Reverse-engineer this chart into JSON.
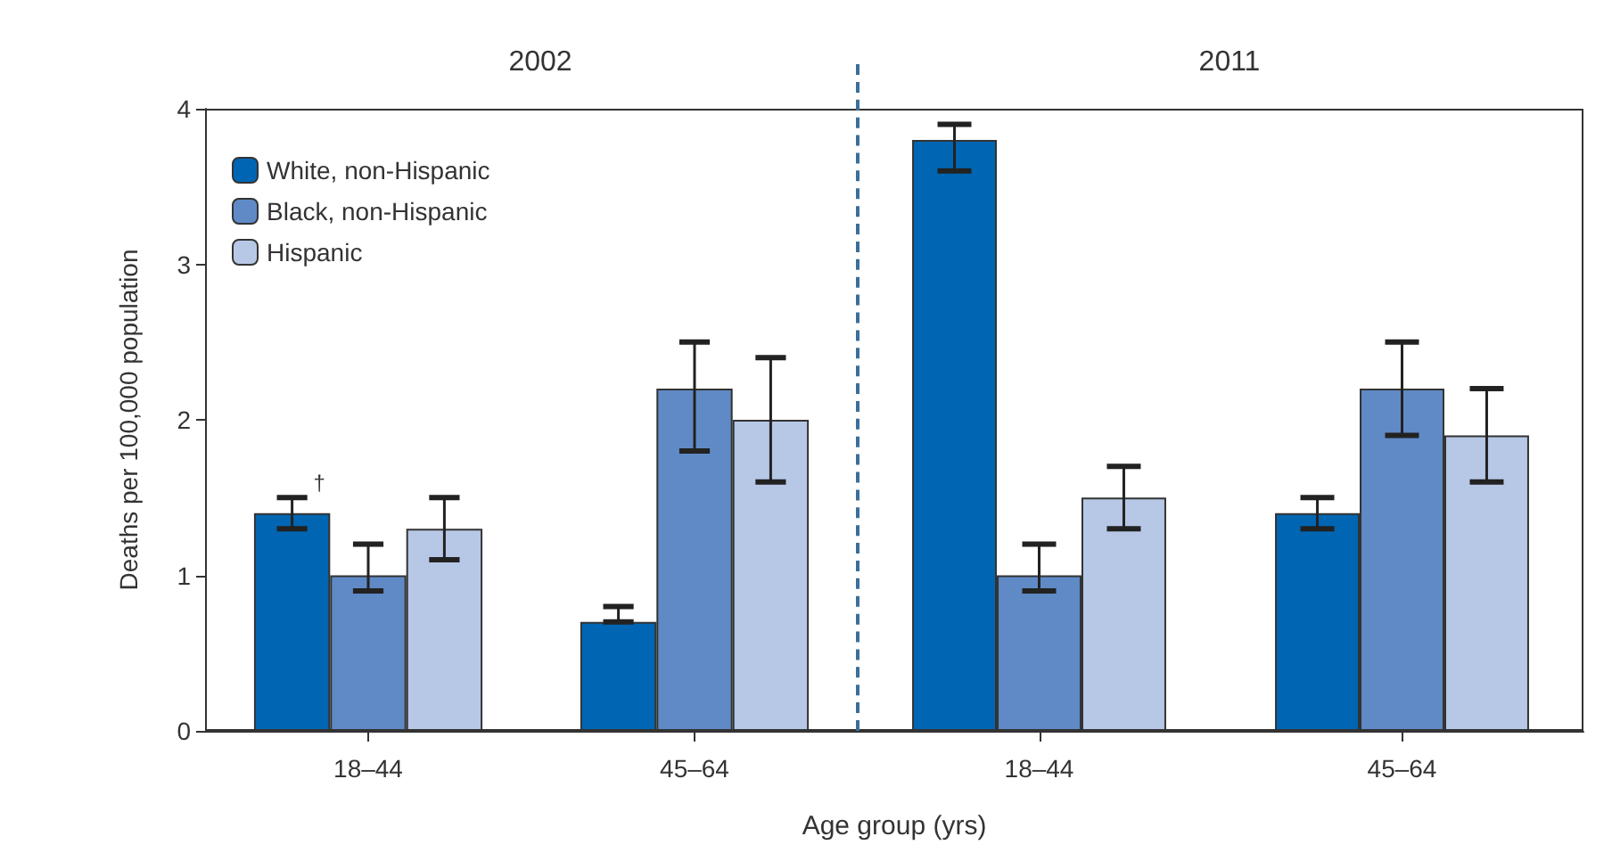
{
  "chart_data": [
    {
      "type": "bar",
      "title": "2002",
      "xlabel": "Age group (yrs)",
      "ylabel": "Deaths per 100,000 population",
      "categories": [
        "18–44",
        "45–64"
      ],
      "ylim": [
        0,
        4
      ],
      "yticks": [
        0,
        1,
        2,
        3,
        4
      ],
      "grid": false,
      "legend": "top left",
      "annotations": [
        "†"
      ],
      "series": [
        {
          "name": "White, non-Hispanic",
          "color": "#0066b3",
          "values": [
            1.4,
            0.7
          ],
          "errors": [
            [
              1.3,
              1.5
            ],
            [
              0.7,
              0.8
            ]
          ]
        },
        {
          "name": "Black, non-Hispanic",
          "color": "#5f8ac6",
          "values": [
            1.0,
            2.2
          ],
          "errors": [
            [
              0.9,
              1.2
            ],
            [
              1.8,
              2.5
            ]
          ]
        },
        {
          "name": "Hispanic",
          "color": "#b7c8e6",
          "values": [
            1.3,
            2.0
          ],
          "errors": [
            [
              1.1,
              1.5
            ],
            [
              1.6,
              2.4
            ]
          ]
        }
      ]
    },
    {
      "type": "bar",
      "title": "2011",
      "categories": [
        "18–44",
        "45–64"
      ],
      "ylim": [
        0,
        4
      ],
      "yticks": [
        0,
        1,
        2,
        3,
        4
      ],
      "grid": false,
      "tick_labels": "x",
      "legend": false,
      "series": [
        {
          "color": "#0066b3",
          "values": [
            3.8,
            1.4
          ],
          "errors": [
            [
              3.6,
              3.9
            ],
            [
              1.3,
              1.5
            ]
          ]
        },
        {
          "color": "#5f8ac6",
          "values": [
            1.0,
            2.2
          ],
          "errors": [
            [
              0.9,
              1.2
            ],
            [
              1.9,
              2.5
            ]
          ]
        },
        {
          "color": "#b7c8e6",
          "values": [
            1.5,
            1.9
          ],
          "errors": [
            [
              1.3,
              1.7
            ],
            [
              1.6,
              2.2
            ]
          ]
        }
      ]
    }
  ]
}
